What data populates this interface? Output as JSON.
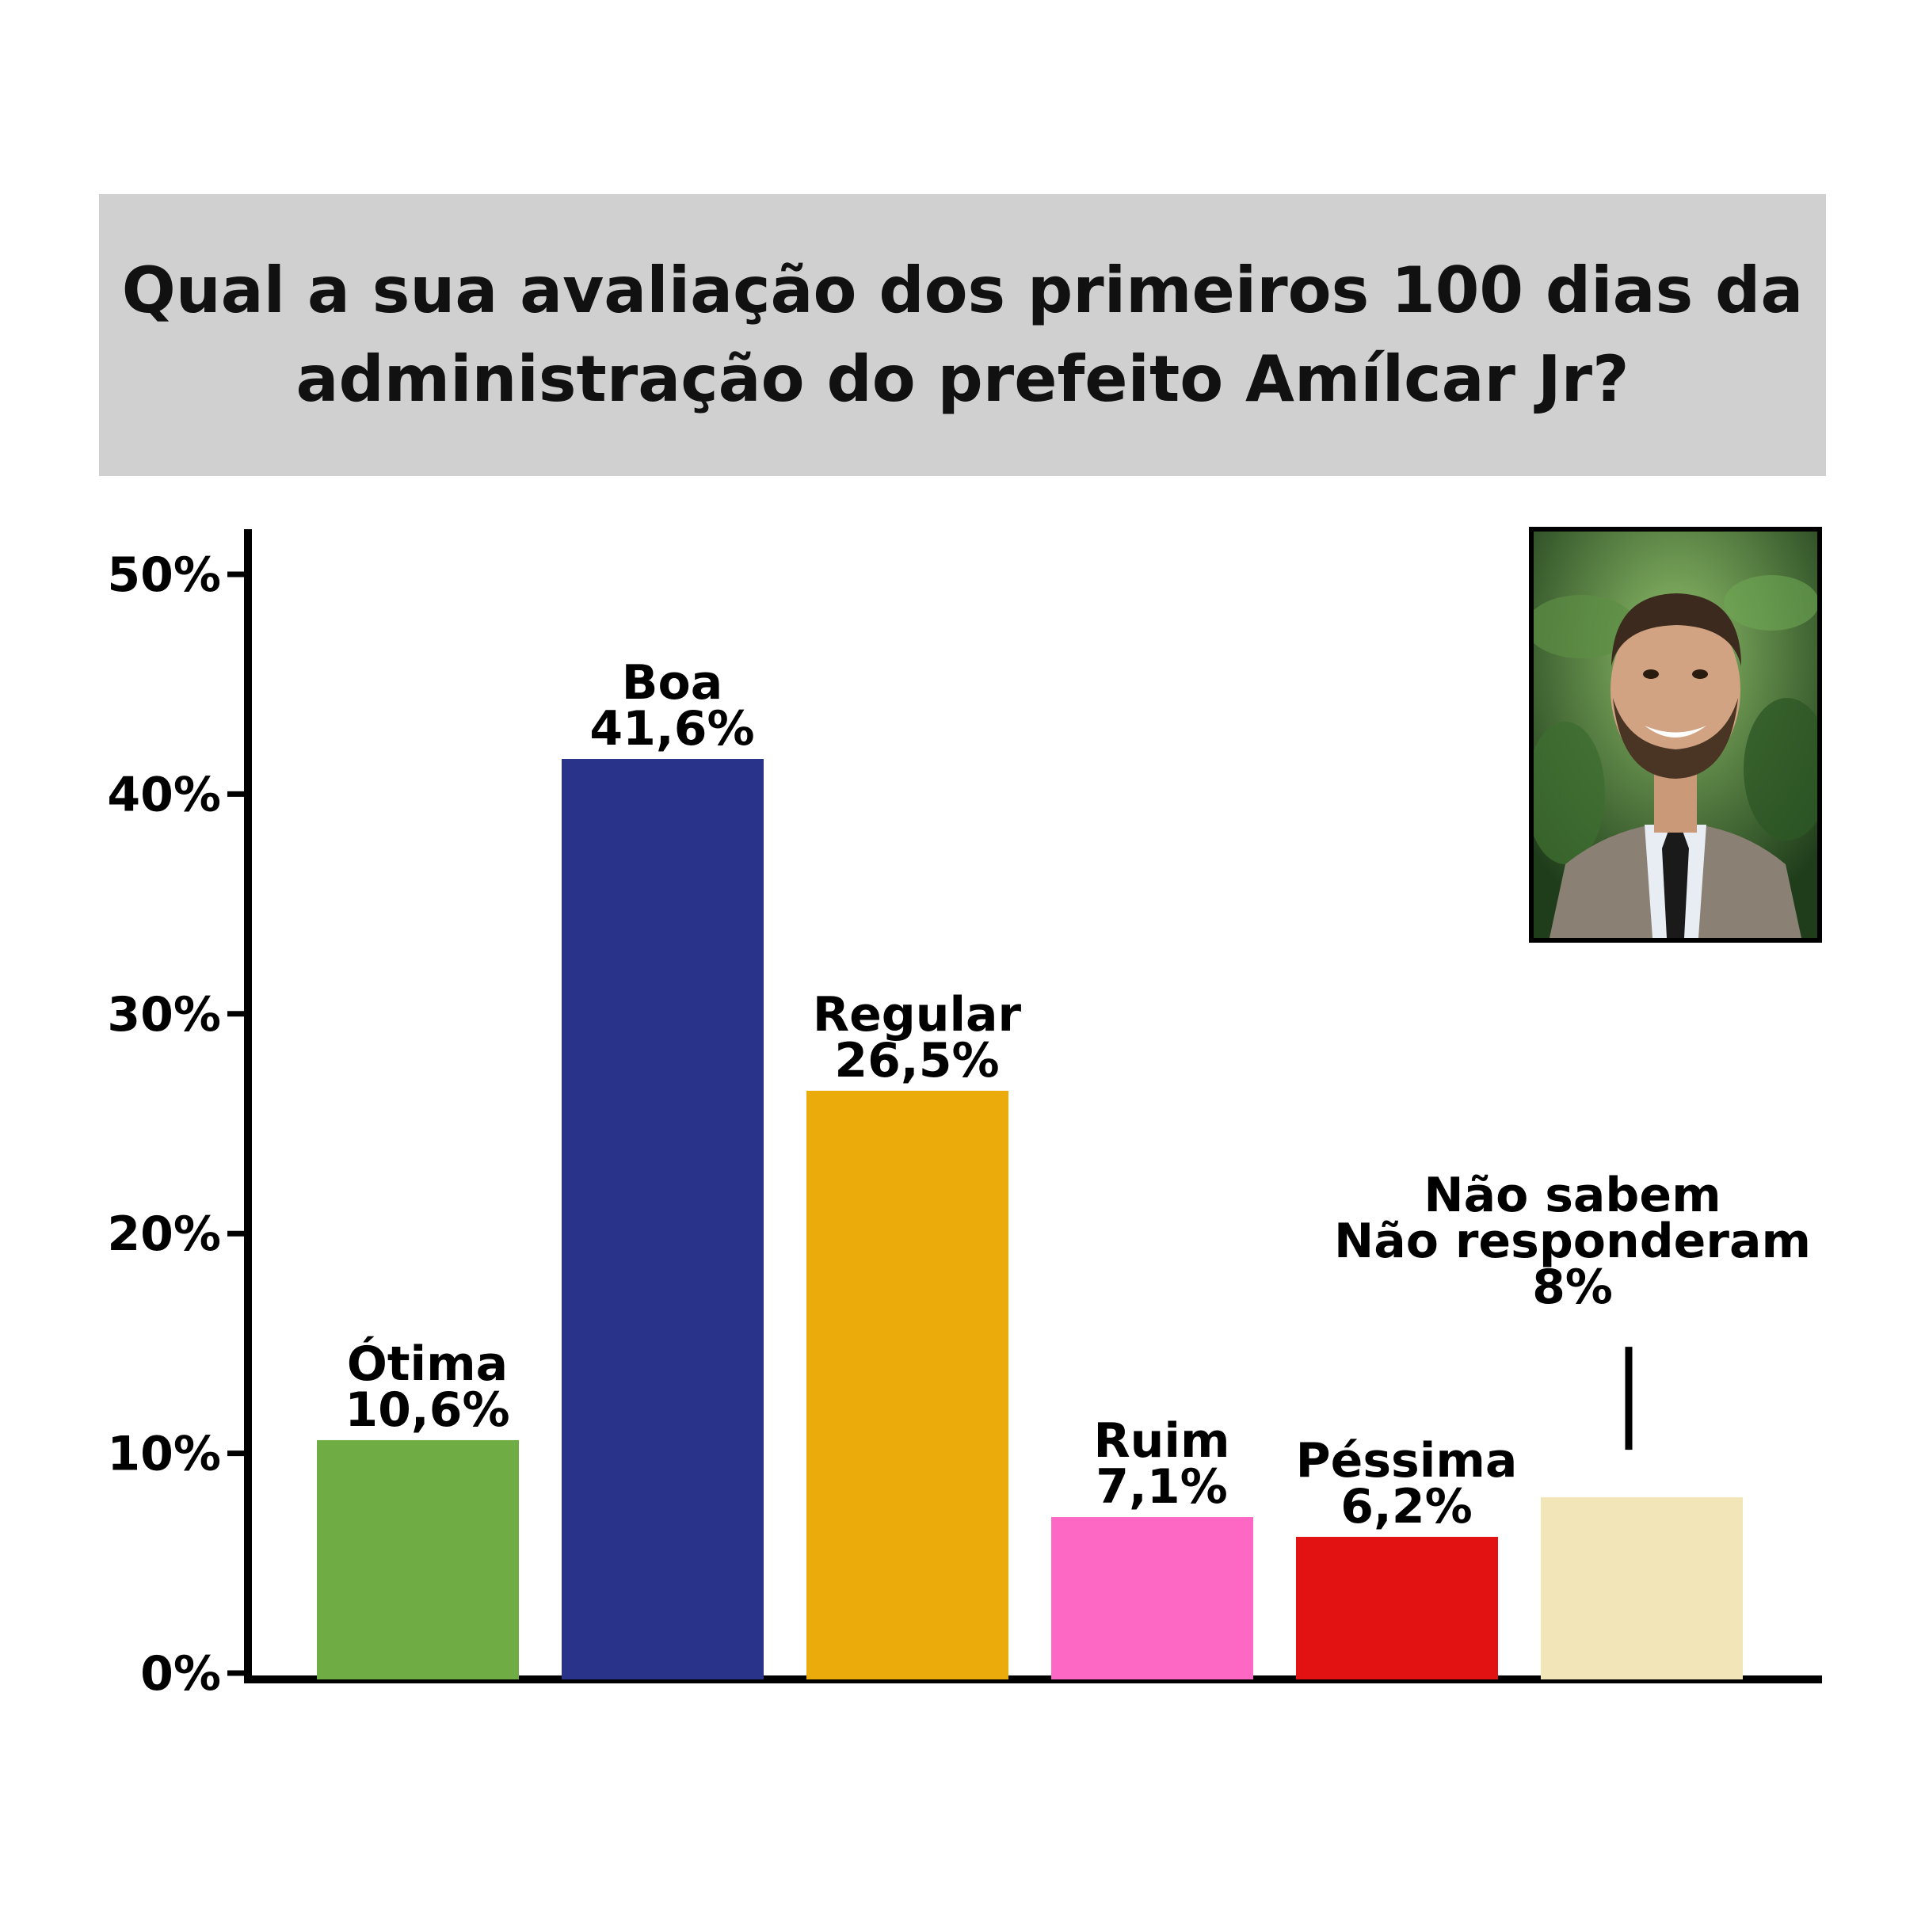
{
  "title": {
    "line1": "Qual a sua avaliação dos primeiros 100 dias da",
    "line2": "administração do prefeito Amílcar Jr?"
  },
  "photo": {
    "subject": "portrait-photo"
  },
  "chart_data": {
    "type": "bar",
    "title": "Qual a sua avaliação dos primeiros 100 dias da administração do prefeito Amílcar Jr?",
    "xlabel": "",
    "ylabel": "",
    "ylim": [
      0,
      50
    ],
    "y_ticks": [
      "0%",
      "10%",
      "20%",
      "30%",
      "40%",
      "50%"
    ],
    "grid": false,
    "categories": [
      "Ótima",
      "Boa",
      "Regular",
      "Ruim",
      "Péssima",
      "Não sabem Não responderam"
    ],
    "values": [
      10.6,
      41.6,
      26.5,
      7.1,
      6.2,
      8
    ],
    "bars": [
      {
        "label_lines": [
          "Ótima"
        ],
        "value_label": "10,6%",
        "value": 10.6,
        "color": "#6fac43"
      },
      {
        "label_lines": [
          "Boa"
        ],
        "value_label": "41,6%",
        "value": 41.6,
        "color": "#283389"
      },
      {
        "label_lines": [
          "Regular"
        ],
        "value_label": "26,5%",
        "value": 26.5,
        "color": "#ebac0b"
      },
      {
        "label_lines": [
          "Ruim"
        ],
        "value_label": "7,1%",
        "value": 7.1,
        "color": "#fe68c5"
      },
      {
        "label_lines": [
          "Péssima"
        ],
        "value_label": "6,2%",
        "value": 6.2,
        "color": "#e21213"
      },
      {
        "label_lines": [
          "Não sabem",
          "Não responderam"
        ],
        "value_label": "8%",
        "value": 8,
        "color": "#f2e6b8",
        "callout": true
      }
    ]
  }
}
